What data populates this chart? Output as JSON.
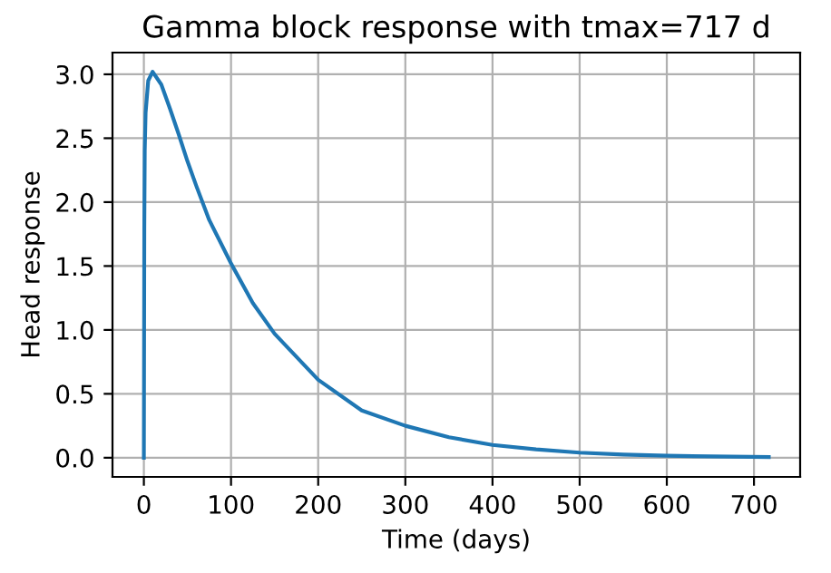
{
  "chart_data": {
    "type": "line",
    "title": "Gamma block response with tmax=717 d",
    "xlabel": "Time (days)",
    "ylabel": "Head response",
    "x": [
      0,
      0.5,
      1,
      2,
      5,
      10,
      20,
      30,
      40,
      50,
      60,
      75,
      100,
      125,
      150,
      200,
      250,
      300,
      350,
      400,
      450,
      500,
      550,
      600,
      650,
      717
    ],
    "series": [
      {
        "color": "#1f77b4",
        "values": [
          0,
          1.8,
          2.4,
          2.7,
          2.95,
          3.02,
          2.92,
          2.73,
          2.53,
          2.32,
          2.13,
          1.86,
          1.52,
          1.21,
          0.97,
          0.61,
          0.37,
          0.25,
          0.16,
          0.1,
          0.065,
          0.04,
          0.025,
          0.016,
          0.01,
          0.005
        ]
      }
    ],
    "xlim": [
      -36,
      753
    ],
    "ylim": [
      -0.15,
      3.17
    ],
    "xticks": [
      0,
      100,
      200,
      300,
      400,
      500,
      600,
      700
    ],
    "yticks": [
      {
        "value": 0,
        "label": "0.0"
      },
      {
        "value": 0.5,
        "label": "0.5"
      },
      {
        "value": 1,
        "label": "1.0"
      },
      {
        "value": 1.5,
        "label": "1.5"
      },
      {
        "value": 2,
        "label": "2.0"
      },
      {
        "value": 2.5,
        "label": "2.5"
      },
      {
        "value": 3,
        "label": "3.0"
      }
    ],
    "grid": true
  }
}
